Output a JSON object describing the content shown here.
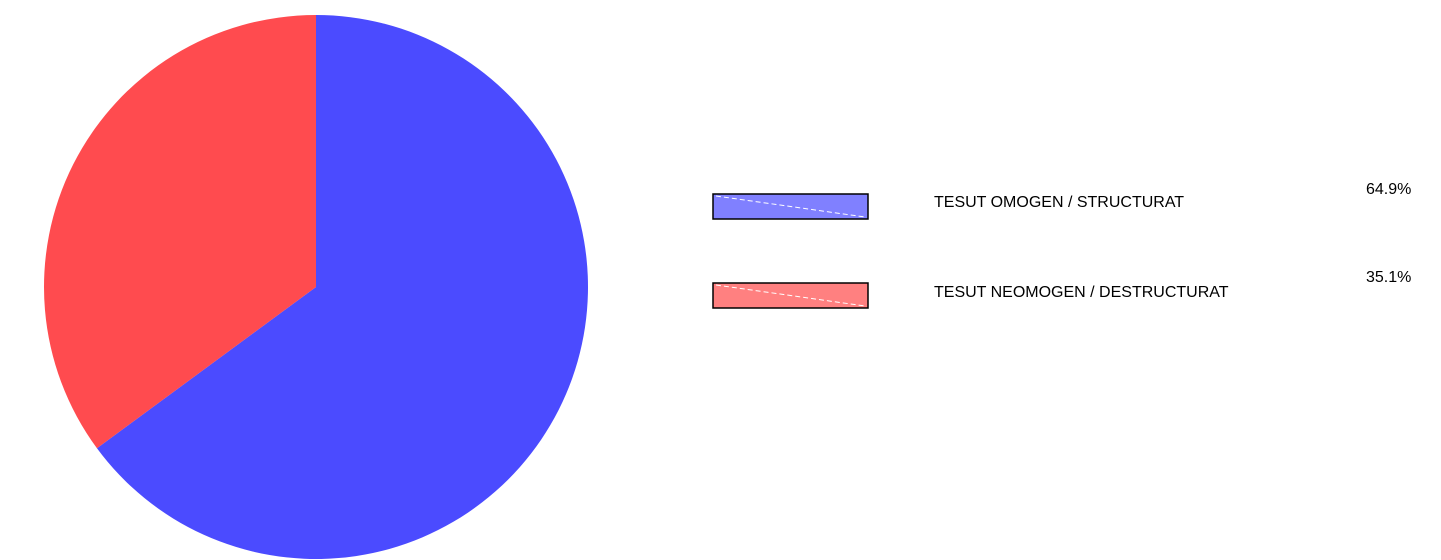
{
  "chart_data": {
    "type": "pie",
    "title": "",
    "legend_placement": "right",
    "slices": [
      {
        "label": "TESUT OMOGEN / STRUCTURAT",
        "value": 64.9,
        "value_label": "64.9%",
        "color": "#4b4bff",
        "legend_color": "#8080ff"
      },
      {
        "label": "TESUT NEOMOGEN / DESTRUCTURAT",
        "value": 35.1,
        "value_label": "35.1%",
        "color": "#ff4b4f",
        "legend_color": "#ff8080"
      }
    ]
  }
}
